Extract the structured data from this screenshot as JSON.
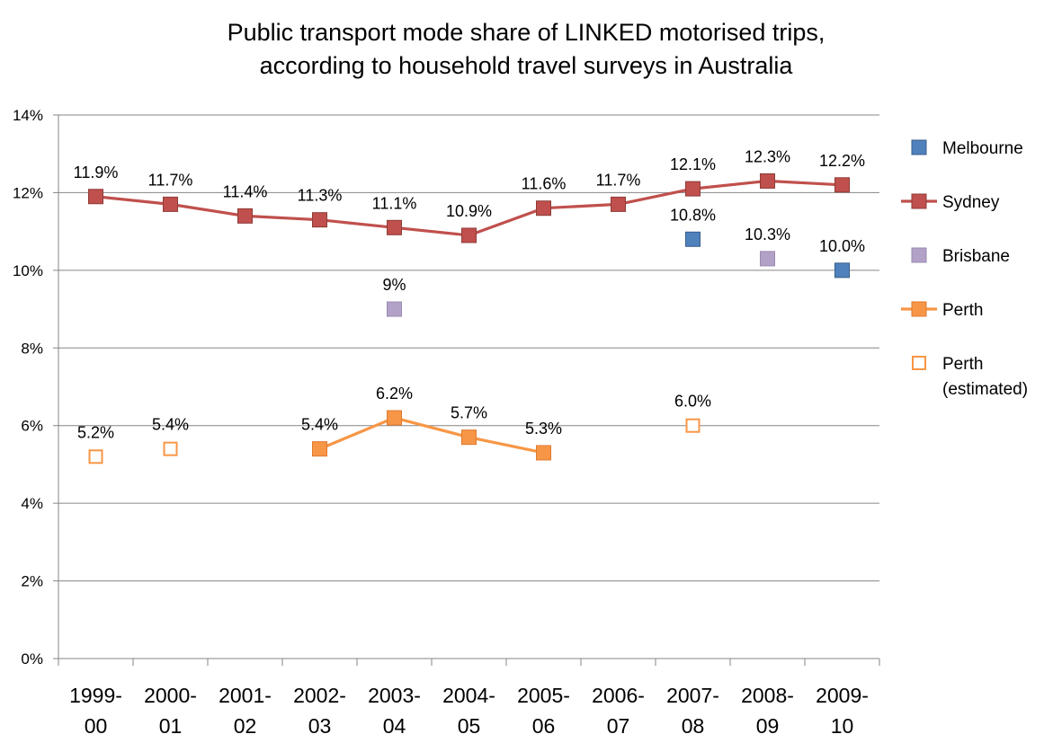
{
  "chart_data": {
    "type": "line",
    "title_lines": [
      "Public transport mode share of LINKED motorised trips,",
      "according to household travel surveys in Australia"
    ],
    "xlabel": "",
    "ylabel": "",
    "ylim": [
      0,
      14
    ],
    "y_ticks": [
      0,
      2,
      4,
      6,
      8,
      10,
      12,
      14
    ],
    "y_tick_labels": [
      "0%",
      "2%",
      "4%",
      "6%",
      "8%",
      "10%",
      "12%",
      "14%"
    ],
    "grid": "horizontal",
    "legend_position": "right",
    "categories": [
      [
        "1999-",
        "00"
      ],
      [
        "2000-",
        "01"
      ],
      [
        "2001-",
        "02"
      ],
      [
        "2002-",
        "03"
      ],
      [
        "2003-",
        "04"
      ],
      [
        "2004-",
        "05"
      ],
      [
        "2005-",
        "06"
      ],
      [
        "2006-",
        "07"
      ],
      [
        "2007-",
        "08"
      ],
      [
        "2008-",
        "09"
      ],
      [
        "2009-",
        "10"
      ]
    ],
    "series": [
      {
        "name": "Melbourne",
        "style": "marker",
        "color": "#4f81bd",
        "values": [
          null,
          null,
          null,
          null,
          null,
          null,
          null,
          null,
          10.8,
          null,
          10.0
        ],
        "labels": [
          null,
          null,
          null,
          null,
          null,
          null,
          null,
          null,
          "10.8%",
          null,
          "10.0%"
        ]
      },
      {
        "name": "Sydney",
        "style": "line-marker",
        "color": "#c0504d",
        "values": [
          11.9,
          11.7,
          11.4,
          11.3,
          11.1,
          10.9,
          11.6,
          11.7,
          12.1,
          12.3,
          12.2
        ],
        "labels": [
          "11.9%",
          "11.7%",
          "11.4%",
          "11.3%",
          "11.1%",
          "10.9%",
          "11.6%",
          "11.7%",
          "12.1%",
          "12.3%",
          "12.2%"
        ]
      },
      {
        "name": "Brisbane",
        "style": "marker",
        "color": "#b3a2c7",
        "values": [
          null,
          null,
          null,
          null,
          9.0,
          null,
          null,
          null,
          null,
          10.3,
          null
        ],
        "labels": [
          null,
          null,
          null,
          null,
          "9%",
          null,
          null,
          null,
          null,
          "10.3%",
          null
        ]
      },
      {
        "name": "Perth",
        "style": "line-marker",
        "color": "#f79646",
        "values": [
          null,
          null,
          null,
          5.4,
          6.2,
          5.7,
          5.3,
          null,
          null,
          null,
          null
        ],
        "labels": [
          null,
          null,
          null,
          "5.4%",
          "6.2%",
          "5.7%",
          "5.3%",
          null,
          null,
          null,
          null
        ]
      },
      {
        "name": "Perth (estimated)",
        "name_lines": [
          "Perth",
          "(estimated)"
        ],
        "style": "hollow-marker",
        "color": "#f79646",
        "values": [
          5.2,
          5.4,
          null,
          null,
          null,
          null,
          null,
          null,
          6.0,
          null,
          null
        ],
        "labels": [
          "5.2%",
          "5.4%",
          null,
          null,
          null,
          null,
          null,
          null,
          "6.0%",
          null,
          null
        ]
      }
    ]
  }
}
